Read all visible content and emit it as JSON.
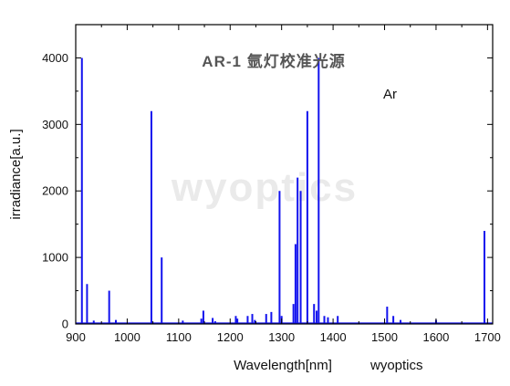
{
  "chart_data": {
    "type": "bar",
    "title": "AR-1 氩灯校准光源",
    "annotation": "Ar",
    "xlabel": "Wavelength[nm]",
    "ylabel": "irradiance[a.u.]",
    "watermark": "wyoptics",
    "caption": "wyoptics",
    "xlim": [
      900,
      1710
    ],
    "ylim": [
      0,
      4500
    ],
    "xticks": [
      900,
      1000,
      1100,
      1200,
      1300,
      1400,
      1500,
      1600,
      1700
    ],
    "yticks": [
      0,
      1000,
      2000,
      3000,
      4000
    ],
    "line_color": "#1212ee",
    "series": [
      {
        "x": [
          912,
          922,
          935,
          965,
          978,
          1047,
          1067,
          1108,
          1144,
          1148,
          1166,
          1171,
          1211,
          1214,
          1234,
          1243,
          1248,
          1270,
          1280,
          1296,
          1300,
          1323,
          1327,
          1331,
          1337,
          1350,
          1363,
          1368,
          1372,
          1383,
          1390,
          1409,
          1505,
          1517,
          1531,
          1600,
          1694
        ],
        "y": [
          4000,
          600,
          50,
          500,
          60,
          3200,
          1000,
          50,
          80,
          200,
          90,
          40,
          120,
          80,
          120,
          150,
          60,
          150,
          180,
          2000,
          120,
          300,
          1200,
          2200,
          2000,
          3200,
          300,
          200,
          4000,
          120,
          100,
          120,
          260,
          120,
          60,
          60,
          1400
        ]
      }
    ]
  }
}
